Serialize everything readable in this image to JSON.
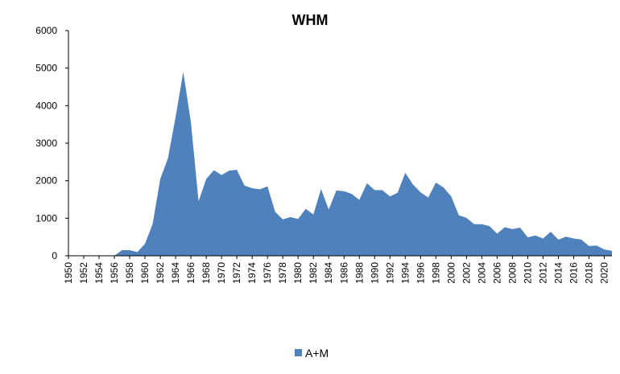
{
  "chart_data": {
    "type": "area",
    "title": "WHM",
    "xlabel": "",
    "ylabel": "",
    "ylim": [
      0,
      6000
    ],
    "yticks": [
      "0",
      "1000",
      "2000",
      "3000",
      "4000",
      "5000",
      "6000"
    ],
    "xlim": [
      1950,
      2021
    ],
    "xtick_labels": [
      "1950",
      "1952",
      "1954",
      "1956",
      "1958",
      "1960",
      "1962",
      "1964",
      "1966",
      "1968",
      "1970",
      "1972",
      "1974",
      "1976",
      "1978",
      "1980",
      "1982",
      "1984",
      "1986",
      "1988",
      "1990",
      "1992",
      "1994",
      "1996",
      "1998",
      "2000",
      "2002",
      "2004",
      "2006",
      "2008",
      "2010",
      "2012",
      "2014",
      "2016",
      "2018",
      "2020"
    ],
    "grid": false,
    "legend_position": "bottom",
    "x": [
      1950,
      1951,
      1952,
      1953,
      1954,
      1955,
      1956,
      1957,
      1958,
      1959,
      1960,
      1961,
      1962,
      1963,
      1964,
      1965,
      1966,
      1967,
      1968,
      1969,
      1970,
      1971,
      1972,
      1973,
      1974,
      1975,
      1976,
      1977,
      1978,
      1979,
      1980,
      1981,
      1982,
      1983,
      1984,
      1985,
      1986,
      1987,
      1988,
      1989,
      1990,
      1991,
      1992,
      1993,
      1994,
      1995,
      1996,
      1997,
      1998,
      1999,
      2000,
      2001,
      2002,
      2003,
      2004,
      2005,
      2006,
      2007,
      2008,
      2009,
      2010,
      2011,
      2012,
      2013,
      2014,
      2015,
      2016,
      2017,
      2018,
      2019,
      2020,
      2021
    ],
    "series": [
      {
        "name": "A+M",
        "color": "#4f81bd",
        "values": [
          0,
          0,
          0,
          0,
          0,
          0,
          0,
          150,
          150,
          100,
          320,
          850,
          2050,
          2600,
          3700,
          4900,
          3550,
          1450,
          2050,
          2280,
          2150,
          2270,
          2290,
          1870,
          1800,
          1770,
          1850,
          1170,
          970,
          1030,
          980,
          1250,
          1100,
          1780,
          1230,
          1740,
          1720,
          1650,
          1490,
          1930,
          1750,
          1750,
          1580,
          1680,
          2210,
          1900,
          1690,
          1550,
          1950,
          1820,
          1580,
          1080,
          1010,
          840,
          840,
          790,
          590,
          760,
          710,
          750,
          490,
          540,
          460,
          640,
          430,
          510,
          460,
          430,
          260,
          270,
          170,
          130
        ]
      }
    ]
  }
}
